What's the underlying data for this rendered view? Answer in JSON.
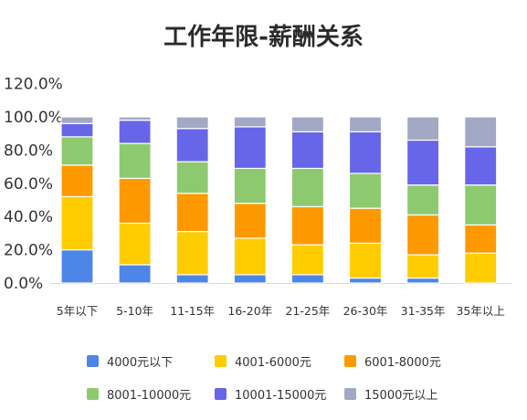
{
  "title": "工作年限-薪酬关系",
  "chart_data": {
    "type": "bar",
    "stacked": true,
    "title": "工作年限-薪酬关系",
    "xlabel": "",
    "ylabel": "",
    "ylim": [
      0,
      120
    ],
    "yticks": [
      "0.0%",
      "20.0%",
      "40.0%",
      "60.0%",
      "80.0%",
      "100.0%",
      "120.0%"
    ],
    "categories": [
      "5年以下",
      "5-10年",
      "11-15年",
      "16-20年",
      "21-25年",
      "26-30年",
      "31-35年",
      "35年以上"
    ],
    "legend_position": "bottom",
    "series": [
      {
        "name": "4000元以下",
        "color": "#4e86e8",
        "values": [
          20,
          11,
          5,
          5,
          5,
          3,
          3,
          0
        ]
      },
      {
        "name": "4001-6000元",
        "color": "#ffcc00",
        "values": [
          32,
          25,
          26,
          22,
          18,
          21,
          14,
          18
        ]
      },
      {
        "name": "6001-8000元",
        "color": "#ff9900",
        "values": [
          19,
          27,
          23,
          21,
          23,
          21,
          24,
          17
        ]
      },
      {
        "name": "8001-10000元",
        "color": "#8dc96e",
        "values": [
          17,
          21,
          19,
          21,
          23,
          21,
          18,
          24
        ]
      },
      {
        "name": "10001-15000元",
        "color": "#6766e8",
        "values": [
          8,
          14,
          20,
          25,
          22,
          25,
          27,
          23
        ]
      },
      {
        "name": "15000元以上",
        "color": "#a3a8c4",
        "values": [
          4,
          2,
          7,
          6,
          9,
          9,
          14,
          18
        ]
      }
    ]
  }
}
